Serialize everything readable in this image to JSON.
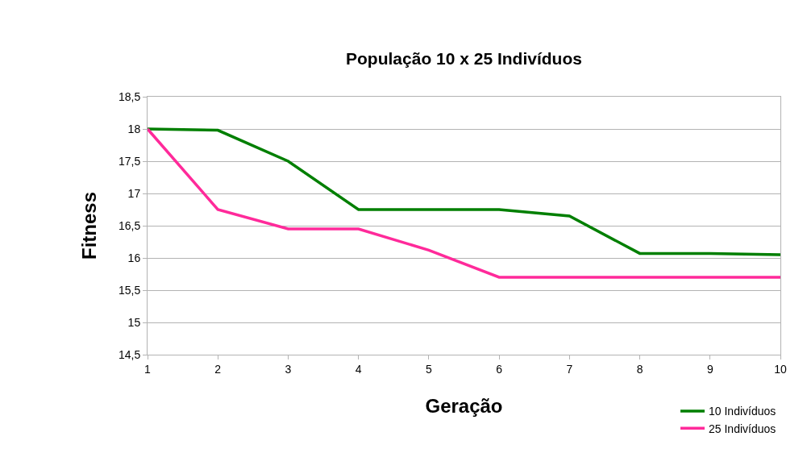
{
  "chart_data": {
    "type": "line",
    "title": "População 10 x 25 Indivíduos",
    "xlabel": "Geração",
    "ylabel": "Fitness",
    "x": [
      1,
      2,
      3,
      4,
      5,
      6,
      7,
      8,
      9,
      10
    ],
    "series": [
      {
        "name": "10 Indivíduos",
        "color": "#007f00",
        "values": [
          18,
          17.98,
          17.5,
          16.75,
          16.75,
          16.75,
          16.65,
          16.07,
          16.07,
          16.05
        ]
      },
      {
        "name": "25 Indivíduos",
        "color": "#ff2a9a",
        "values": [
          18,
          16.75,
          16.45,
          16.45,
          16.12,
          15.7,
          15.7,
          15.7,
          15.7,
          15.7
        ]
      }
    ],
    "xlim": [
      1,
      10
    ],
    "xticks": [
      1,
      2,
      3,
      4,
      5,
      6,
      7,
      8,
      9,
      10
    ],
    "ylim": [
      14.5,
      18.5
    ],
    "yticks": [
      {
        "value": 14.5,
        "label": "14,5"
      },
      15,
      {
        "value": 15.5,
        "label": "15,5"
      },
      16,
      {
        "value": 16.5,
        "label": "16,5"
      },
      17,
      {
        "value": 17.5,
        "label": "17,5"
      },
      18,
      {
        "value": 18.5,
        "label": "18,5"
      }
    ],
    "grid": "y",
    "legend": "bottom right",
    "marker": "none",
    "line_style": "solid"
  }
}
